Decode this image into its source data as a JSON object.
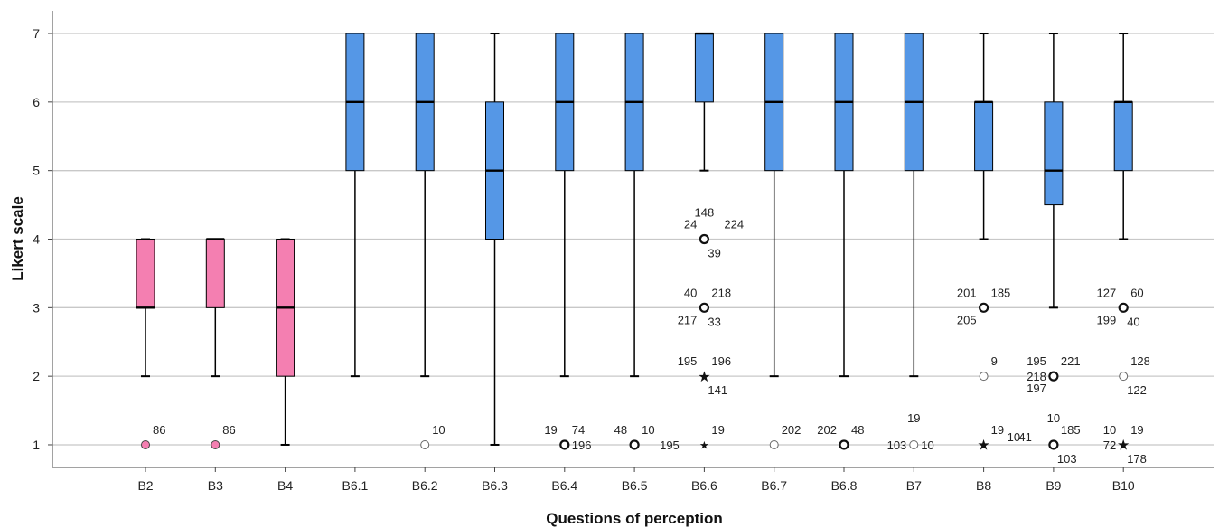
{
  "chart_data": {
    "type": "box",
    "xlabel": "Questions of perception",
    "ylabel": "Likert scale",
    "ylim": [
      0.67,
      7.33
    ],
    "yticks": [
      1,
      2,
      3,
      4,
      5,
      6,
      7
    ],
    "grid": "horizontal",
    "colors": {
      "pink": "#F47FB1",
      "blue": "#5597E6"
    },
    "categories": [
      "B2",
      "B3",
      "B4",
      "B6.1",
      "B6.2",
      "B6.3",
      "B6.4",
      "B6.5",
      "B6.6",
      "B6.7",
      "B6.8",
      "B7",
      "B8",
      "B9",
      "B10"
    ],
    "boxes": [
      {
        "category": "B2",
        "color": "pink",
        "lower_whisker": 2,
        "q1": 3,
        "median": 3,
        "q3": 4,
        "upper_whisker": 4
      },
      {
        "category": "B3",
        "color": "pink",
        "lower_whisker": 2,
        "q1": 3,
        "median": 4,
        "q3": 4,
        "upper_whisker": 4
      },
      {
        "category": "B4",
        "color": "pink",
        "lower_whisker": 1,
        "q1": 2,
        "median": 3,
        "q3": 4,
        "upper_whisker": 4
      },
      {
        "category": "B6.1",
        "color": "blue",
        "lower_whisker": 2,
        "q1": 5,
        "median": 6,
        "q3": 7,
        "upper_whisker": 7
      },
      {
        "category": "B6.2",
        "color": "blue",
        "lower_whisker": 2,
        "q1": 5,
        "median": 6,
        "q3": 7,
        "upper_whisker": 7
      },
      {
        "category": "B6.3",
        "color": "blue",
        "lower_whisker": 1,
        "q1": 4,
        "median": 5,
        "q3": 6,
        "upper_whisker": 7
      },
      {
        "category": "B6.4",
        "color": "blue",
        "lower_whisker": 2,
        "q1": 5,
        "median": 6,
        "q3": 7,
        "upper_whisker": 7
      },
      {
        "category": "B6.5",
        "color": "blue",
        "lower_whisker": 2,
        "q1": 5,
        "median": 6,
        "q3": 7,
        "upper_whisker": 7
      },
      {
        "category": "B6.6",
        "color": "blue",
        "lower_whisker": 5,
        "q1": 6,
        "median": 7,
        "q3": 7,
        "upper_whisker": 7
      },
      {
        "category": "B6.7",
        "color": "blue",
        "lower_whisker": 2,
        "q1": 5,
        "median": 6,
        "q3": 7,
        "upper_whisker": 7
      },
      {
        "category": "B6.8",
        "color": "blue",
        "lower_whisker": 2,
        "q1": 5,
        "median": 6,
        "q3": 7,
        "upper_whisker": 7
      },
      {
        "category": "B7",
        "color": "blue",
        "lower_whisker": 2,
        "q1": 5,
        "median": 6,
        "q3": 7,
        "upper_whisker": 7
      },
      {
        "category": "B8",
        "color": "blue",
        "lower_whisker": 4,
        "q1": 5,
        "median": 6,
        "q3": 6,
        "upper_whisker": 7
      },
      {
        "category": "B9",
        "color": "blue",
        "lower_whisker": 3,
        "q1": 4.5,
        "median": 5,
        "q3": 6,
        "upper_whisker": 7
      },
      {
        "category": "B10",
        "color": "blue",
        "lower_whisker": 4,
        "q1": 5,
        "median": 6,
        "q3": 6,
        "upper_whisker": 7
      }
    ],
    "outliers": [
      {
        "category": "B2",
        "value": 1,
        "marker": "circle-filled",
        "labels": [
          {
            "text": "86",
            "pos": "ne"
          }
        ]
      },
      {
        "category": "B3",
        "value": 1,
        "marker": "circle-filled",
        "labels": [
          {
            "text": "86",
            "pos": "ne"
          }
        ]
      },
      {
        "category": "B6.2",
        "value": 1,
        "marker": "circle",
        "labels": [
          {
            "text": "10",
            "pos": "ne"
          }
        ]
      },
      {
        "category": "B6.4",
        "value": 1,
        "marker": "circle-bold",
        "labels": [
          {
            "text": "19",
            "pos": "nw"
          },
          {
            "text": "74",
            "pos": "ne"
          },
          {
            "text": "196",
            "pos": "e"
          }
        ]
      },
      {
        "category": "B6.5",
        "value": 1,
        "marker": "circle-bold",
        "labels": [
          {
            "text": "48",
            "pos": "nw"
          },
          {
            "text": "10",
            "pos": "ne"
          },
          {
            "text": "195",
            "pos": "e2"
          }
        ]
      },
      {
        "category": "B6.6",
        "value": 4,
        "marker": "circle-bold",
        "labels": [
          {
            "text": "148",
            "pos": "nn"
          },
          {
            "text": "24",
            "pos": "nw"
          },
          {
            "text": "224",
            "pos": "ne2"
          },
          {
            "text": "39",
            "pos": "se"
          }
        ]
      },
      {
        "category": "B6.6",
        "value": 3,
        "marker": "circle-bold",
        "labels": [
          {
            "text": "40",
            "pos": "nw"
          },
          {
            "text": "218",
            "pos": "ne"
          },
          {
            "text": "217",
            "pos": "sw"
          },
          {
            "text": "33",
            "pos": "se"
          }
        ]
      },
      {
        "category": "B6.6",
        "value": 2,
        "marker": "star",
        "labels": [
          {
            "text": "195",
            "pos": "nw"
          },
          {
            "text": "196",
            "pos": "ne"
          },
          {
            "text": "141",
            "pos": "se"
          }
        ]
      },
      {
        "category": "B6.6",
        "value": 1,
        "marker": "star-small",
        "labels": [
          {
            "text": "19",
            "pos": "ne"
          }
        ]
      },
      {
        "category": "B6.7",
        "value": 1,
        "marker": "circle",
        "labels": [
          {
            "text": "202",
            "pos": "ne"
          }
        ]
      },
      {
        "category": "B6.8",
        "value": 1,
        "marker": "circle-bold",
        "labels": [
          {
            "text": "202",
            "pos": "nw"
          },
          {
            "text": "48",
            "pos": "ne"
          }
        ]
      },
      {
        "category": "B7",
        "value": 1,
        "marker": "circle",
        "labels": [
          {
            "text": "19",
            "pos": "nn"
          },
          {
            "text": "103",
            "pos": "w"
          },
          {
            "text": "10",
            "pos": "e"
          }
        ]
      },
      {
        "category": "B8",
        "value": 3,
        "marker": "circle-bold",
        "labels": [
          {
            "text": "201",
            "pos": "nw"
          },
          {
            "text": "185",
            "pos": "ne"
          },
          {
            "text": "205",
            "pos": "sw"
          }
        ]
      },
      {
        "category": "B8",
        "value": 2,
        "marker": "circle",
        "labels": [
          {
            "text": "9",
            "pos": "ne"
          }
        ]
      },
      {
        "category": "B8",
        "value": 1,
        "marker": "star",
        "labels": [
          {
            "text": "19",
            "pos": "ne"
          },
          {
            "text": "10",
            "pos": "se-far"
          }
        ]
      },
      {
        "category": "B9",
        "value": 2,
        "marker": "circle-bold",
        "labels": [
          {
            "text": "195",
            "pos": "nw"
          },
          {
            "text": "221",
            "pos": "ne"
          },
          {
            "text": "218",
            "pos": "w"
          },
          {
            "text": "197",
            "pos": "sw"
          }
        ]
      },
      {
        "category": "B9",
        "value": 1,
        "marker": "circle-bold",
        "labels": [
          {
            "text": "41",
            "pos": "w-far"
          },
          {
            "text": "10",
            "pos": "nn"
          },
          {
            "text": "185",
            "pos": "ne"
          },
          {
            "text": "103",
            "pos": "se"
          }
        ]
      },
      {
        "category": "B10",
        "value": 3,
        "marker": "circle-bold",
        "labels": [
          {
            "text": "127",
            "pos": "nw"
          },
          {
            "text": "60",
            "pos": "ne"
          },
          {
            "text": "199",
            "pos": "sw"
          },
          {
            "text": "40",
            "pos": "se"
          }
        ]
      },
      {
        "category": "B10",
        "value": 2,
        "marker": "circle",
        "labels": [
          {
            "text": "128",
            "pos": "ne"
          },
          {
            "text": "122",
            "pos": "se"
          }
        ]
      },
      {
        "category": "B10",
        "value": 1,
        "marker": "star",
        "labels": [
          {
            "text": "10",
            "pos": "nw"
          },
          {
            "text": "19",
            "pos": "ne"
          },
          {
            "text": "72",
            "pos": "w"
          },
          {
            "text": "178",
            "pos": "se"
          }
        ]
      }
    ]
  }
}
